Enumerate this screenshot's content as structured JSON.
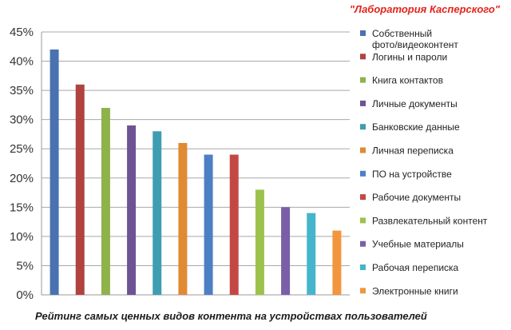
{
  "credit": "\"Лаборатория Касперского\"",
  "caption": "Рейтинг самых ценных видов контента на устройствах пользователей",
  "chart_data": {
    "type": "bar",
    "title": "",
    "xlabel": "",
    "ylabel": "",
    "ylim": [
      0,
      45
    ],
    "yticks": [
      "0%",
      "5%",
      "10%",
      "15%",
      "20%",
      "25%",
      "30%",
      "35%",
      "40%",
      "45%"
    ],
    "grid": true,
    "legend_position": "right",
    "categories": [
      "Собственный фото/видеоконтент",
      "Логины и пароли",
      "Книга контактов",
      "Личные документы",
      "Банковские данные",
      "Личная переписка",
      "ПО на устройстве",
      "Рабочие документы",
      "Развлекательный контент",
      "Учебные материалы",
      "Рабочая переписка",
      "Электронные книги"
    ],
    "legend_lines": [
      [
        "Собственный",
        "фото/видеоконтент"
      ],
      [
        "Логины и пароли"
      ],
      [
        "Книга контактов"
      ],
      [
        "Личные документы"
      ],
      [
        "Банковские данные"
      ],
      [
        "Личная переписка"
      ],
      [
        "ПО на устройстве"
      ],
      [
        "Рабочие документы"
      ],
      [
        "Развлекательный  контент"
      ],
      [
        "Учебные материалы"
      ],
      [
        "Рабочая переписка"
      ],
      [
        "Электронные  книги"
      ]
    ],
    "values": [
      42,
      36,
      32,
      29,
      28,
      26,
      24,
      24,
      18,
      15,
      14,
      11
    ],
    "colors": [
      "#4a72b0",
      "#b0433f",
      "#8fb24a",
      "#6e5394",
      "#3f9db2",
      "#e08a33",
      "#4d7fc4",
      "#c34844",
      "#9cc24c",
      "#7a5ea8",
      "#45b5cc",
      "#f2963e"
    ]
  }
}
